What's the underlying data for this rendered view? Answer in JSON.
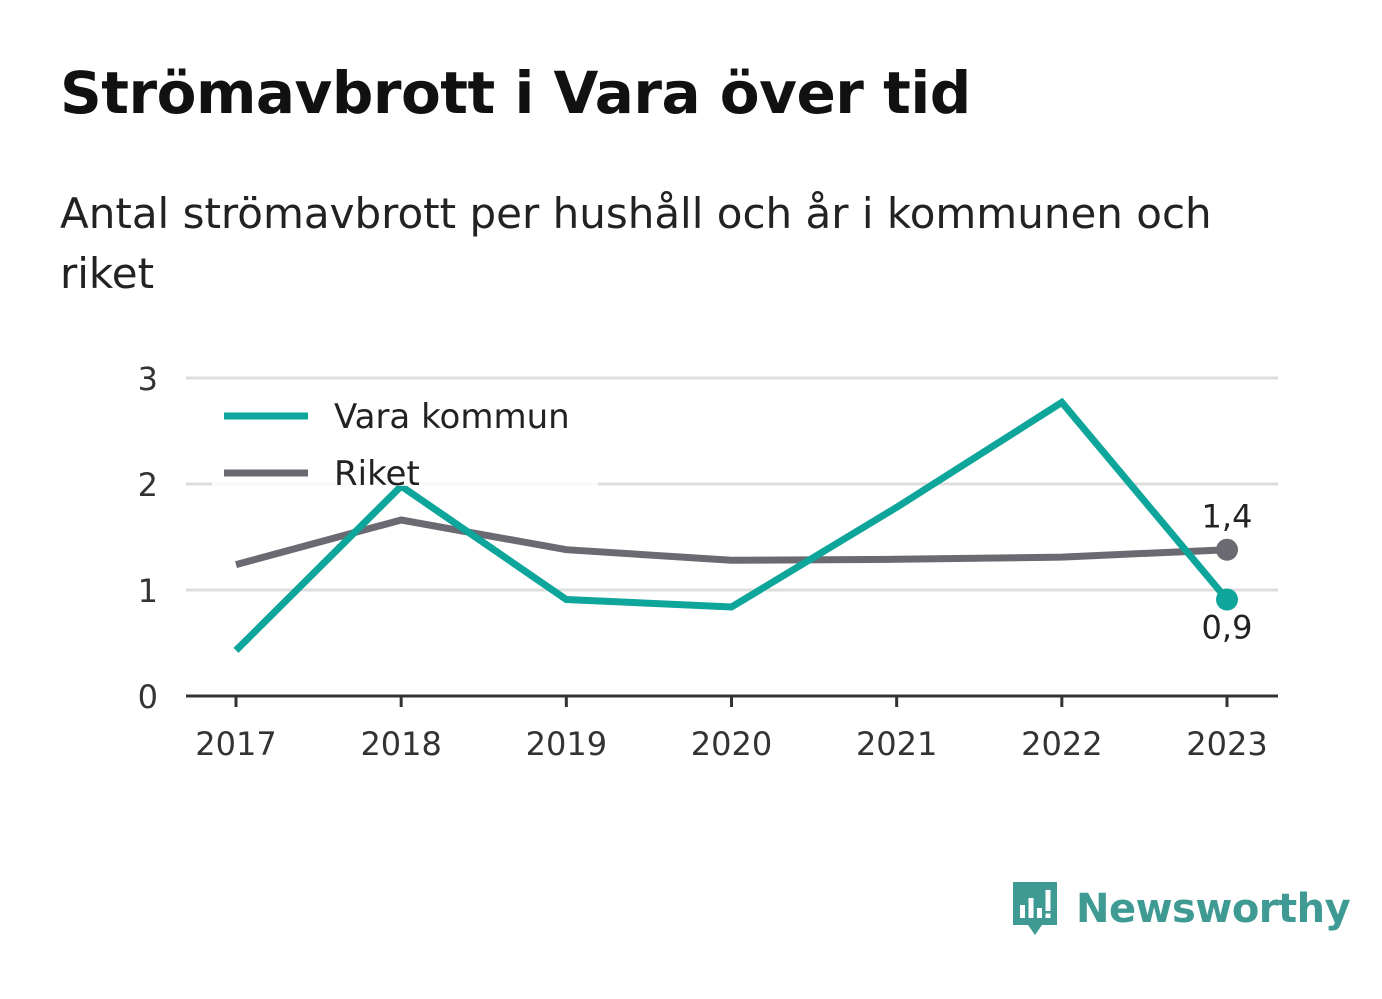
{
  "header": {
    "title": "Strömavbrott i Vara över tid",
    "subtitle": "Antal strömavbrott per hushåll och år i kommunen och riket"
  },
  "brand": {
    "name": "Newsworthy",
    "icon": "newsworthy-logo-icon",
    "color": "#3e9a93"
  },
  "chart_data": {
    "type": "line",
    "x": [
      "2017",
      "2018",
      "2019",
      "2020",
      "2021",
      "2022",
      "2023"
    ],
    "series": [
      {
        "name": "Vara kommun",
        "color": "#0ea59b",
        "values": [
          0.43,
          1.98,
          0.91,
          0.84,
          1.78,
          2.77,
          0.91
        ],
        "end_label": "0,9"
      },
      {
        "name": "Riket",
        "color": "#6b6a72",
        "values": [
          1.24,
          1.66,
          1.38,
          1.28,
          1.29,
          1.31,
          1.38
        ],
        "end_label": "1,4"
      }
    ],
    "ylim": [
      0,
      3
    ],
    "yticks": [
      "0",
      "1",
      "2",
      "3"
    ],
    "xlabel": "",
    "ylabel": "",
    "grid": true,
    "legend": "top-left"
  }
}
